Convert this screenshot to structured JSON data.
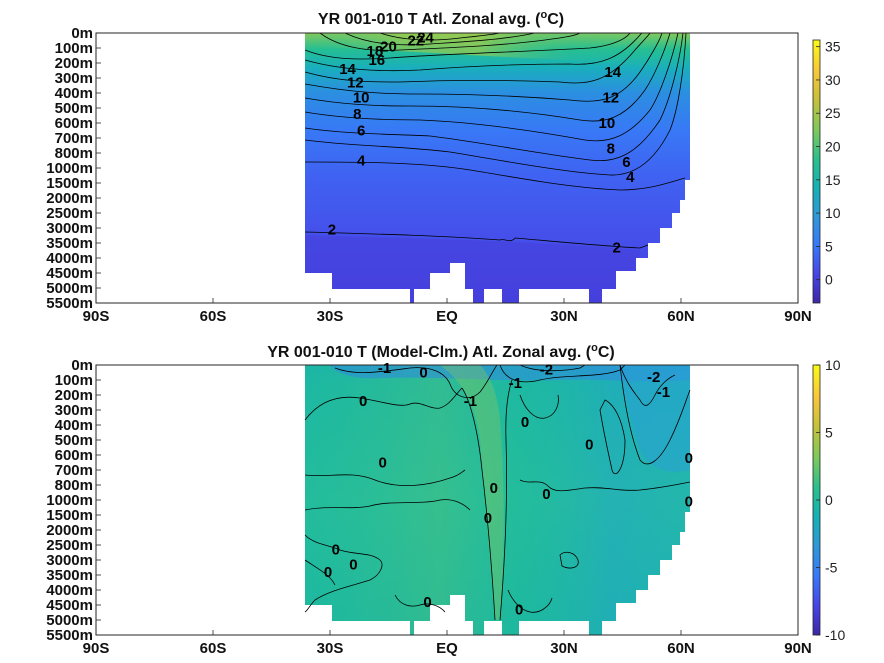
{
  "chart_data": [
    {
      "type": "heatmap",
      "title_main": "YR 001-010 T Atl. Zonal avg. (",
      "title_sup": "o",
      "title_end": "C)",
      "x_ticks": [
        "90S",
        "60S",
        "30S",
        "EQ",
        "30N",
        "60N",
        "90N"
      ],
      "y_ticks": [
        "0m",
        "100m",
        "200m",
        "300m",
        "400m",
        "500m",
        "600m",
        "700m",
        "800m",
        "1000m",
        "1500m",
        "2000m",
        "2500m",
        "3000m",
        "3500m",
        "4000m",
        "4500m",
        "5000m",
        "5500m"
      ],
      "xlim": [
        -90,
        90
      ],
      "data_lat_range": [
        -34,
        63
      ],
      "colorbar": {
        "ticks": [
          "35",
          "30",
          "25",
          "20",
          "15",
          "10",
          "5",
          "0"
        ],
        "range": [
          -3.5,
          36
        ]
      },
      "contour_labels": [
        {
          "text": "24",
          "lat": -5.5,
          "depth_index": 0.3
        },
        {
          "text": "22",
          "lat": -8,
          "depth_index": 0.5
        },
        {
          "text": "20",
          "lat": -15,
          "depth_index": 0.9
        },
        {
          "text": "18",
          "lat": -18.5,
          "depth_index": 1.2
        },
        {
          "text": "16",
          "lat": -18,
          "depth_index": 1.8
        },
        {
          "text": "14",
          "lat": -25.5,
          "depth_index": 2.4
        },
        {
          "text": "12",
          "lat": -23.5,
          "depth_index": 3.3
        },
        {
          "text": "10",
          "lat": -22,
          "depth_index": 4.3
        },
        {
          "text": "8",
          "lat": -23,
          "depth_index": 5.4
        },
        {
          "text": "6",
          "lat": -22,
          "depth_index": 6.5
        },
        {
          "text": "4",
          "lat": -22,
          "depth_index": 8.5
        },
        {
          "text": "2",
          "lat": -29.5,
          "depth_index": 13.1
        },
        {
          "text": "2",
          "lat": 43.5,
          "depth_index": 14.3
        },
        {
          "text": "14",
          "lat": 42.5,
          "depth_index": 2.6
        },
        {
          "text": "12",
          "lat": 42,
          "depth_index": 4.3
        },
        {
          "text": "10",
          "lat": 41,
          "depth_index": 6.0
        },
        {
          "text": "8",
          "lat": 42,
          "depth_index": 7.7
        },
        {
          "text": "6",
          "lat": 46,
          "depth_index": 8.6
        },
        {
          "text": "4",
          "lat": 47,
          "depth_index": 9.6
        }
      ]
    },
    {
      "type": "heatmap",
      "title_main": "YR 001-010 T (Model-Clm.) Atl. Zonal avg. (",
      "title_sup": "o",
      "title_end": "C)",
      "x_ticks": [
        "90S",
        "60S",
        "30S",
        "EQ",
        "30N",
        "60N",
        "90N"
      ],
      "y_ticks": [
        "0m",
        "100m",
        "200m",
        "300m",
        "400m",
        "500m",
        "600m",
        "700m",
        "800m",
        "1000m",
        "1500m",
        "2000m",
        "2500m",
        "3000m",
        "3500m",
        "4000m",
        "4500m",
        "5000m",
        "5500m"
      ],
      "xlim": [
        -90,
        90
      ],
      "data_lat_range": [
        -34,
        63
      ],
      "colorbar": {
        "ticks": [
          "10",
          "5",
          "0",
          "-5",
          "-10"
        ],
        "range": [
          -10,
          10
        ]
      },
      "contour_labels": [
        {
          "text": "-1",
          "lat": -16,
          "depth_index": 0.2
        },
        {
          "text": "0",
          "lat": -6,
          "depth_index": 0.5
        },
        {
          "text": "-2",
          "lat": 25.5,
          "depth_index": 0.3
        },
        {
          "text": "-1",
          "lat": 17.5,
          "depth_index": 1.2
        },
        {
          "text": "-2",
          "lat": 53,
          "depth_index": 0.8
        },
        {
          "text": "-1",
          "lat": 55.5,
          "depth_index": 1.8
        },
        {
          "text": "0",
          "lat": -21.5,
          "depth_index": 2.4
        },
        {
          "text": "-1",
          "lat": 6,
          "depth_index": 2.4
        },
        {
          "text": "0",
          "lat": 20,
          "depth_index": 3.8
        },
        {
          "text": "0",
          "lat": 36.5,
          "depth_index": 5.3
        },
        {
          "text": "0",
          "lat": 62,
          "depth_index": 6.2
        },
        {
          "text": "0",
          "lat": -16.5,
          "depth_index": 6.5
        },
        {
          "text": "0",
          "lat": 12,
          "depth_index": 8.2
        },
        {
          "text": "0",
          "lat": 25.5,
          "depth_index": 8.6
        },
        {
          "text": "0",
          "lat": 62,
          "depth_index": 9.1
        },
        {
          "text": "0",
          "lat": 10.5,
          "depth_index": 10.2
        },
        {
          "text": "0",
          "lat": -28.5,
          "depth_index": 12.3
        },
        {
          "text": "0",
          "lat": -24,
          "depth_index": 13.3
        },
        {
          "text": "0",
          "lat": -30.5,
          "depth_index": 13.8
        },
        {
          "text": "0",
          "lat": -5,
          "depth_index": 15.8
        },
        {
          "text": "0",
          "lat": 18.5,
          "depth_index": 16.3
        }
      ]
    }
  ],
  "colormap": [
    "#3e26a8",
    "#4745e8",
    "#3779fb",
    "#2d99d8",
    "#14b2b5",
    "#2cc08b",
    "#7fc95a",
    "#c4c13a",
    "#f8c63b",
    "#f9fb15"
  ]
}
